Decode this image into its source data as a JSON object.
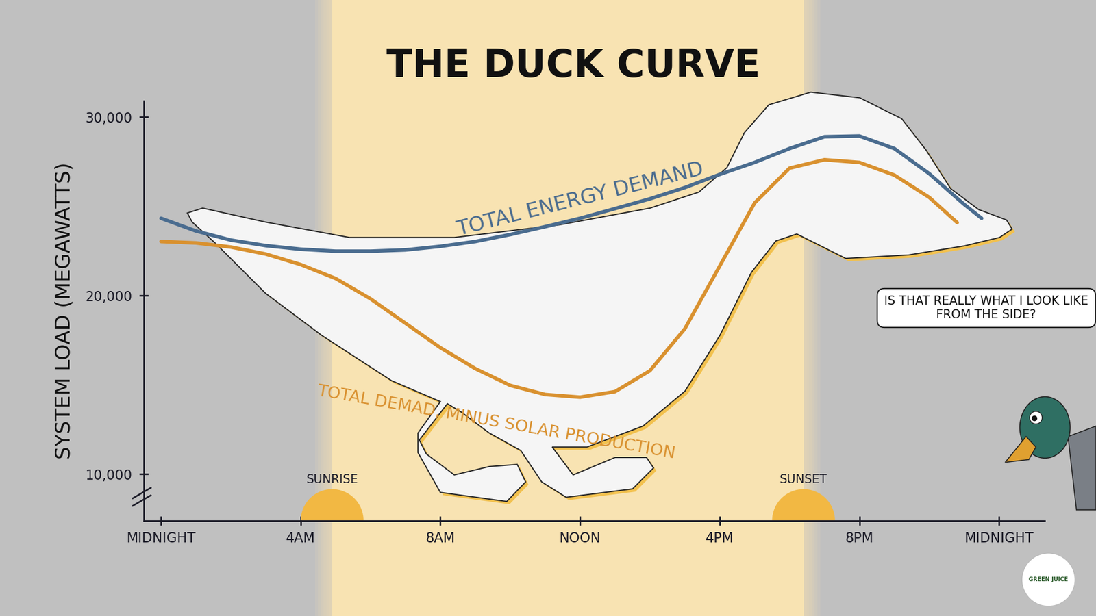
{
  "chart_data": {
    "type": "line",
    "title": "THE DUCK CURVE",
    "y_label": "SYSTEM LOAD (MEGAWATTS)",
    "x": [
      0,
      1,
      2,
      3,
      4,
      5,
      6,
      7,
      8,
      9,
      10,
      11,
      12,
      13,
      14,
      15,
      16,
      17,
      18,
      19,
      20,
      21,
      22,
      22.8,
      23,
      23.5
    ],
    "series": [
      {
        "name": "TOTAL ENERGY DEMAND",
        "color": "#4a6c8f",
        "values": [
          24330,
          23620,
          23110,
          22800,
          22600,
          22490,
          22490,
          22560,
          22760,
          23030,
          23420,
          23860,
          24330,
          24870,
          25420,
          26050,
          26790,
          27460,
          28240,
          28900,
          28940,
          28240,
          26830,
          25450,
          25110,
          24330
        ]
      },
      {
        "name": "TOTAL DEMAD, MINUS SOLAR PRODUCTION",
        "color": "#d9912f",
        "values": [
          23030,
          22950,
          22720,
          22330,
          21740,
          20960,
          19820,
          18450,
          17080,
          15910,
          14970,
          14460,
          14310,
          14620,
          15790,
          18140,
          21660,
          25190,
          27140,
          27610,
          27460,
          26750,
          25500,
          24090,
          null,
          null
        ]
      }
    ],
    "xlim": [
      -0.5,
      25.3
    ],
    "xticks": [
      {
        "value": 0,
        "label": "MIDNIGHT"
      },
      {
        "value": 4,
        "label": "4AM"
      },
      {
        "value": 8,
        "label": "8AM"
      },
      {
        "value": 12,
        "label": "NOON"
      },
      {
        "value": 16,
        "label": "4PM"
      },
      {
        "value": 20,
        "label": "8PM"
      },
      {
        "value": 24,
        "label": "MIDNIGHT"
      }
    ],
    "ylim": [
      7400,
      30900
    ],
    "yticks": [
      {
        "value": 10000,
        "label": "10,000"
      },
      {
        "value": 20000,
        "label": "20,000"
      },
      {
        "value": 30000,
        "label": "30,000"
      }
    ],
    "grid": false,
    "sun_markers": [
      {
        "text": "SUNRISE",
        "x": 4.9
      },
      {
        "text": "SUNSET",
        "x": 18.4
      }
    ],
    "annotations": [
      "IS THAT REALLY WHAT I LOOK LIKE FROM THE SIDE?",
      "GREEN JUICE"
    ]
  }
}
